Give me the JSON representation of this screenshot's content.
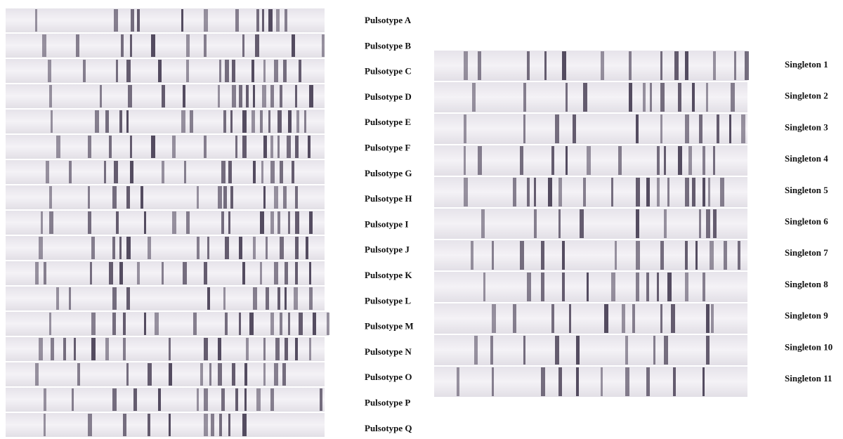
{
  "pulsotypes": {
    "labels": [
      "Pulsotype A",
      "Pulsotype B",
      "Pulsotype C",
      "Pulsotype D",
      "Pulsotype E",
      "Pulsotype F",
      "Pulsotype G",
      "Pulsotype H",
      "Pulsotype I",
      "Pulsotype J",
      "Pulsotype K",
      "Pulsotype L",
      "Pulsotype M",
      "Pulsotype N",
      "Pulsotype O",
      "Pulsotype P",
      "Pulsotype Q"
    ]
  },
  "singletons": {
    "labels": [
      "Singleton 1",
      "Singleton 2",
      "Singleton 3",
      "Singleton 4",
      "Singleton 5",
      "Singleton 6",
      "Singleton 7",
      "Singleton 8",
      "Singleton 9",
      "Singleton 10",
      "Singleton 11"
    ]
  }
}
